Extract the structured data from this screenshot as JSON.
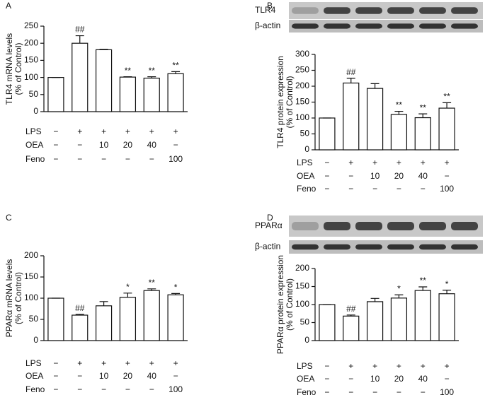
{
  "chart_data": [
    {
      "type": "bar",
      "panel": "A",
      "ylabel": [
        "TLR4 mRNA levels",
        "(% of Control)"
      ],
      "values": [
        100,
        200,
        181,
        101,
        98,
        111
      ],
      "errors": [
        0,
        22,
        1,
        1,
        4,
        6
      ],
      "annotations": [
        null,
        "##",
        null,
        "**",
        "**",
        "**"
      ],
      "ylim": [
        0,
        250
      ],
      "yticks": [
        0,
        50,
        100,
        150,
        200,
        250
      ],
      "color": "#ffffff",
      "treatments": [
        {
          "name": "LPS",
          "values": [
            "−",
            "+",
            "+",
            "+",
            "+",
            "+"
          ]
        },
        {
          "name": "OEA",
          "values": [
            "−",
            "−",
            "10",
            "20",
            "40",
            "−"
          ]
        },
        {
          "name": "Feno",
          "values": [
            "−",
            "−",
            "−",
            "−",
            "−",
            "100"
          ]
        }
      ]
    },
    {
      "type": "bar",
      "panel": "B",
      "ylabel": [
        "TLR4 protein expression",
        "(% of Control)"
      ],
      "blot_labels": [
        "TLR4",
        "β-actin"
      ],
      "values": [
        100,
        210,
        193,
        111,
        101,
        131
      ],
      "errors": [
        0,
        15,
        15,
        10,
        12,
        17
      ],
      "annotations": [
        null,
        "##",
        null,
        "**",
        "**",
        "**"
      ],
      "ylim": [
        0,
        300
      ],
      "yticks": [
        0,
        50,
        100,
        150,
        200,
        250,
        300
      ],
      "color": "#ffffff",
      "treatments": [
        {
          "name": "LPS",
          "values": [
            "−",
            "+",
            "+",
            "+",
            "+",
            "+"
          ]
        },
        {
          "name": "OEA",
          "values": [
            "−",
            "−",
            "10",
            "20",
            "40",
            "−"
          ]
        },
        {
          "name": "Feno",
          "values": [
            "−",
            "−",
            "−",
            "−",
            "−",
            "100"
          ]
        }
      ]
    },
    {
      "type": "bar",
      "panel": "C",
      "ylabel": [
        "PPARα mRNA levels",
        "(% of Control)"
      ],
      "values": [
        100,
        60,
        82,
        102,
        118,
        108
      ],
      "errors": [
        0,
        2,
        10,
        10,
        4,
        3
      ],
      "annotations": [
        null,
        "##",
        null,
        "*",
        "**",
        "*"
      ],
      "ylim": [
        0,
        200
      ],
      "yticks": [
        0,
        50,
        100,
        150,
        200
      ],
      "color": "#ffffff",
      "treatments": [
        {
          "name": "LPS",
          "values": [
            "−",
            "+",
            "+",
            "+",
            "+",
            "+"
          ]
        },
        {
          "name": "OEA",
          "values": [
            "−",
            "−",
            "10",
            "20",
            "40",
            "−"
          ]
        },
        {
          "name": "Feno",
          "values": [
            "−",
            "−",
            "−",
            "−",
            "−",
            "100"
          ]
        }
      ]
    },
    {
      "type": "bar",
      "panel": "D",
      "ylabel": [
        "PPARα protein expression",
        "(% of Control)"
      ],
      "blot_labels": [
        "PPARα",
        "β-actin"
      ],
      "values": [
        100,
        68,
        108,
        118,
        139,
        130
      ],
      "errors": [
        0,
        3,
        9,
        9,
        10,
        10
      ],
      "annotations": [
        null,
        "##",
        null,
        "*",
        "**",
        "*"
      ],
      "ylim": [
        0,
        200
      ],
      "yticks": [
        0,
        50,
        100,
        150,
        200
      ],
      "color": "#ffffff",
      "treatments": [
        {
          "name": "LPS",
          "values": [
            "−",
            "+",
            "+",
            "+",
            "+",
            "+"
          ]
        },
        {
          "name": "OEA",
          "values": [
            "−",
            "−",
            "10",
            "20",
            "40",
            "−"
          ]
        },
        {
          "name": "Feno",
          "values": [
            "−",
            "−",
            "−",
            "−",
            "−",
            "100"
          ]
        }
      ]
    }
  ]
}
